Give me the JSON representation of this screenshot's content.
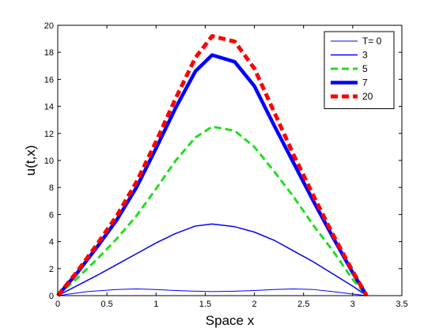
{
  "chart_data": {
    "type": "line",
    "title": "",
    "xlabel": "Space x",
    "ylabel": "u(t,x)",
    "xlim": [
      0,
      3.5
    ],
    "ylim": [
      0,
      20
    ],
    "xticks": [
      0,
      0.5,
      1,
      1.5,
      2,
      2.5,
      3,
      3.5
    ],
    "yticks": [
      0,
      2,
      4,
      6,
      8,
      10,
      12,
      14,
      16,
      18,
      20
    ],
    "xtick_labels": [
      "0",
      "0.5",
      "1",
      "1.5",
      "2",
      "2.5",
      "3",
      "3.5"
    ],
    "ytick_labels": [
      "0",
      "2",
      "4",
      "6",
      "8",
      "10",
      "12",
      "14",
      "16",
      "18",
      "20"
    ],
    "grid": false,
    "legend_position": "top-right",
    "series": [
      {
        "name": "T= 0",
        "color": "#0000ff",
        "style": "solid-thin",
        "x": [
          0,
          0.3,
          0.6,
          0.8,
          1.0,
          1.2,
          1.4,
          1.57,
          1.8,
          2.0,
          2.2,
          2.4,
          2.6,
          2.8,
          3.0,
          3.1416
        ],
        "y": [
          0,
          0.3,
          0.45,
          0.5,
          0.45,
          0.38,
          0.33,
          0.3,
          0.33,
          0.38,
          0.45,
          0.5,
          0.45,
          0.3,
          0.12,
          0
        ]
      },
      {
        "name": "3",
        "color": "#0000ff",
        "style": "solid",
        "x": [
          0,
          0.2,
          0.4,
          0.6,
          0.8,
          1.0,
          1.2,
          1.4,
          1.57,
          1.8,
          2.0,
          2.2,
          2.4,
          2.6,
          2.8,
          3.0,
          3.1416
        ],
        "y": [
          0,
          0.75,
          1.5,
          2.3,
          3.1,
          3.9,
          4.6,
          5.15,
          5.3,
          5.1,
          4.7,
          4.1,
          3.3,
          2.5,
          1.6,
          0.7,
          0
        ]
      },
      {
        "name": "5",
        "color": "#22dd22",
        "style": "dashed",
        "x": [
          0,
          0.2,
          0.4,
          0.6,
          0.8,
          1.0,
          1.2,
          1.4,
          1.57,
          1.8,
          2.0,
          2.2,
          2.4,
          2.6,
          2.8,
          3.0,
          3.1416
        ],
        "y": [
          0,
          1.3,
          2.7,
          4.2,
          5.9,
          7.9,
          10.0,
          11.7,
          12.5,
          12.2,
          11.0,
          9.2,
          7.3,
          5.2,
          3.3,
          1.2,
          0
        ]
      },
      {
        "name": "7",
        "color": "#0000ff",
        "style": "solid-thick",
        "x": [
          0,
          0.2,
          0.4,
          0.6,
          0.8,
          1.0,
          1.2,
          1.4,
          1.57,
          1.8,
          2.0,
          2.2,
          2.4,
          2.6,
          2.8,
          3.0,
          3.1416
        ],
        "y": [
          0,
          1.7,
          3.6,
          5.6,
          8.0,
          10.9,
          13.9,
          16.6,
          17.8,
          17.3,
          15.5,
          12.6,
          9.8,
          7.0,
          4.3,
          1.7,
          0
        ]
      },
      {
        "name": "20",
        "color": "#ff0000",
        "style": "dashed-thick",
        "x": [
          0,
          0.2,
          0.4,
          0.6,
          0.8,
          1.0,
          1.2,
          1.4,
          1.57,
          1.8,
          2.0,
          2.2,
          2.4,
          2.6,
          2.8,
          3.0,
          3.1416
        ],
        "y": [
          0,
          1.8,
          3.8,
          5.9,
          8.4,
          11.4,
          14.6,
          17.6,
          19.2,
          18.8,
          16.8,
          13.6,
          10.4,
          7.4,
          4.5,
          1.8,
          0
        ]
      }
    ]
  }
}
